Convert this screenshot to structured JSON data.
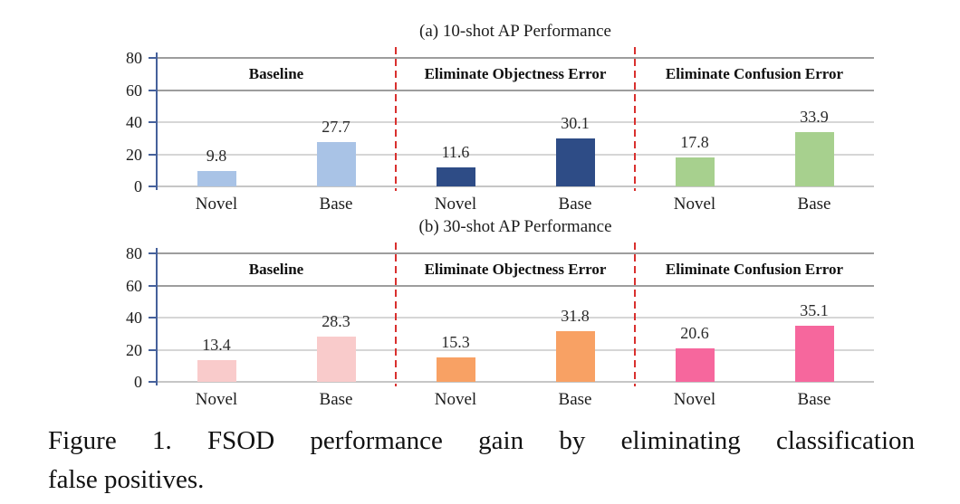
{
  "chart_data": [
    {
      "type": "bar",
      "title": "(a) 10-shot AP Performance",
      "categories": [
        "Novel",
        "Base"
      ],
      "ylabel": "",
      "ylim": [
        0,
        80
      ],
      "yticks": [
        0,
        20,
        40,
        60,
        80
      ],
      "grid": "horizontal",
      "sections": [
        {
          "label": "Baseline",
          "color": "#a9c3e6",
          "values": [
            9.8,
            27.7
          ]
        },
        {
          "label": "Eliminate Objectness Error",
          "color": "#2e4c86",
          "values": [
            11.6,
            30.1
          ]
        },
        {
          "label": "Eliminate Confusion Error",
          "color": "#a7d08e",
          "values": [
            17.8,
            33.9
          ]
        }
      ]
    },
    {
      "type": "bar",
      "title": "(b) 30-shot AP Performance",
      "categories": [
        "Novel",
        "Base"
      ],
      "ylabel": "",
      "ylim": [
        0,
        80
      ],
      "yticks": [
        0,
        20,
        40,
        60,
        80
      ],
      "grid": "horizontal",
      "sections": [
        {
          "label": "Baseline",
          "color": "#f9cbcb",
          "values": [
            13.4,
            28.3
          ]
        },
        {
          "label": "Eliminate Objectness Error",
          "color": "#f8a164",
          "values": [
            15.3,
            31.8
          ]
        },
        {
          "label": "Eliminate Confusion Error",
          "color": "#f6679d",
          "values": [
            20.6,
            35.1
          ]
        }
      ]
    }
  ],
  "caption": {
    "line1": "Figure 1. FSOD performance gain by eliminating classification",
    "line2": "false positives."
  },
  "colors": {
    "divider": "#d9302e",
    "axis": "#46619b",
    "gridline_major": "#9d9d9d",
    "gridline_minor": "#d6d6d6",
    "gridline_zero": "#c6c6c6"
  }
}
